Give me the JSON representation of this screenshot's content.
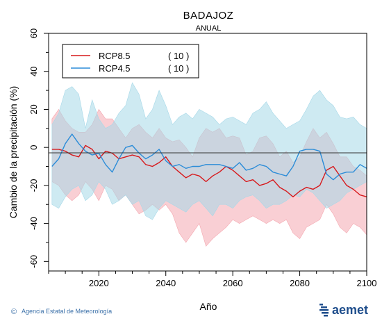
{
  "chart_data": {
    "type": "line",
    "title": "BADAJOZ",
    "subtitle": "ANUAL",
    "xlabel": "Año",
    "ylabel": "Cambio de la precipitación (%)",
    "xlim": [
      2005,
      2100
    ],
    "ylim": [
      -65,
      60
    ],
    "xticks": [
      2020,
      2040,
      2060,
      2080,
      2100
    ],
    "yticks": [
      -60,
      -40,
      -20,
      0,
      20,
      40,
      60
    ],
    "grid": false,
    "legend_position": "top-left",
    "x": [
      2006,
      2008,
      2010,
      2012,
      2014,
      2016,
      2018,
      2020,
      2022,
      2024,
      2026,
      2028,
      2030,
      2032,
      2034,
      2036,
      2038,
      2040,
      2042,
      2044,
      2046,
      2048,
      2050,
      2052,
      2054,
      2056,
      2058,
      2060,
      2062,
      2064,
      2066,
      2068,
      2070,
      2072,
      2074,
      2076,
      2078,
      2080,
      2082,
      2084,
      2086,
      2088,
      2090,
      2092,
      2094,
      2096,
      2098,
      2100
    ],
    "series": [
      {
        "name": "RCP8.5",
        "count": "( 10 )",
        "color": "#d7191c",
        "band_color": "#f4a8b0",
        "values": [
          -1,
          -1,
          -2,
          -4,
          -5,
          1,
          -1,
          -6,
          -2,
          -3,
          -6,
          -5,
          -4,
          -5,
          -9,
          -10,
          -8,
          -5,
          -10,
          -13,
          -16,
          -14,
          -15,
          -18,
          -15,
          -13,
          -10,
          -12,
          -15,
          -18,
          -17,
          -20,
          -19,
          -17,
          -21,
          -23,
          -26,
          -23,
          -21,
          -22,
          -20,
          -12,
          -10,
          -15,
          -20,
          -22,
          -25,
          -26
        ],
        "upper": [
          15,
          20,
          14,
          10,
          8,
          8,
          12,
          20,
          15,
          15,
          10,
          5,
          10,
          12,
          8,
          5,
          10,
          5,
          3,
          4,
          0,
          -5,
          5,
          10,
          8,
          10,
          5,
          6,
          5,
          -4,
          -2,
          5,
          6,
          2,
          -5,
          -2,
          -8,
          -5,
          3,
          10,
          5,
          8,
          2,
          -5,
          -5,
          -10,
          -12,
          -15
        ],
        "lower": [
          -18,
          -20,
          -25,
          -28,
          -25,
          -18,
          -22,
          -28,
          -20,
          -22,
          -28,
          -25,
          -30,
          -35,
          -33,
          -30,
          -33,
          -30,
          -35,
          -45,
          -50,
          -45,
          -40,
          -52,
          -48,
          -45,
          -42,
          -38,
          -40,
          -38,
          -36,
          -38,
          -40,
          -38,
          -40,
          -38,
          -45,
          -48,
          -42,
          -40,
          -38,
          -30,
          -35,
          -42,
          -45,
          -40,
          -42,
          -46
        ]
      },
      {
        "name": "RCP4.5",
        "count": "( 10 )",
        "color": "#2b8cd8",
        "band_color": "#a6d8e8",
        "values": [
          -10,
          -6,
          2,
          7,
          2,
          -2,
          -4,
          -3,
          -9,
          -13,
          -6,
          0,
          1,
          -3,
          -6,
          -4,
          -1,
          -7,
          -10,
          -9,
          -11,
          -10,
          -10,
          -9,
          -9,
          -9,
          -10,
          -11,
          -8,
          -12,
          -11,
          -9,
          -10,
          -13,
          -14,
          -15,
          -10,
          -2,
          -1,
          -1,
          -2,
          -14,
          -17,
          -14,
          -13,
          -13,
          -9,
          -11
        ],
        "upper": [
          12,
          18,
          30,
          32,
          28,
          10,
          25,
          15,
          10,
          12,
          18,
          22,
          34,
          28,
          15,
          20,
          30,
          22,
          12,
          16,
          18,
          15,
          20,
          18,
          16,
          12,
          15,
          16,
          14,
          12,
          18,
          20,
          24,
          18,
          14,
          10,
          12,
          14,
          20,
          27,
          30,
          25,
          22,
          16,
          15,
          16,
          12,
          10
        ],
        "lower": [
          -30,
          -32,
          -26,
          -22,
          -20,
          -28,
          -25,
          -18,
          -22,
          -30,
          -28,
          -25,
          -30,
          -28,
          -36,
          -38,
          -32,
          -28,
          -30,
          -32,
          -34,
          -30,
          -28,
          -32,
          -36,
          -30,
          -30,
          -32,
          -28,
          -26,
          -25,
          -28,
          -32,
          -30,
          -30,
          -28,
          -25,
          -26,
          -22,
          -24,
          -28,
          -32,
          -30,
          -28,
          -24,
          -22,
          -20,
          -18
        ]
      }
    ]
  },
  "footer": {
    "copyright_symbol": "©",
    "agency": "Agencia Estatal de Meteorología",
    "brand": "aemet"
  }
}
